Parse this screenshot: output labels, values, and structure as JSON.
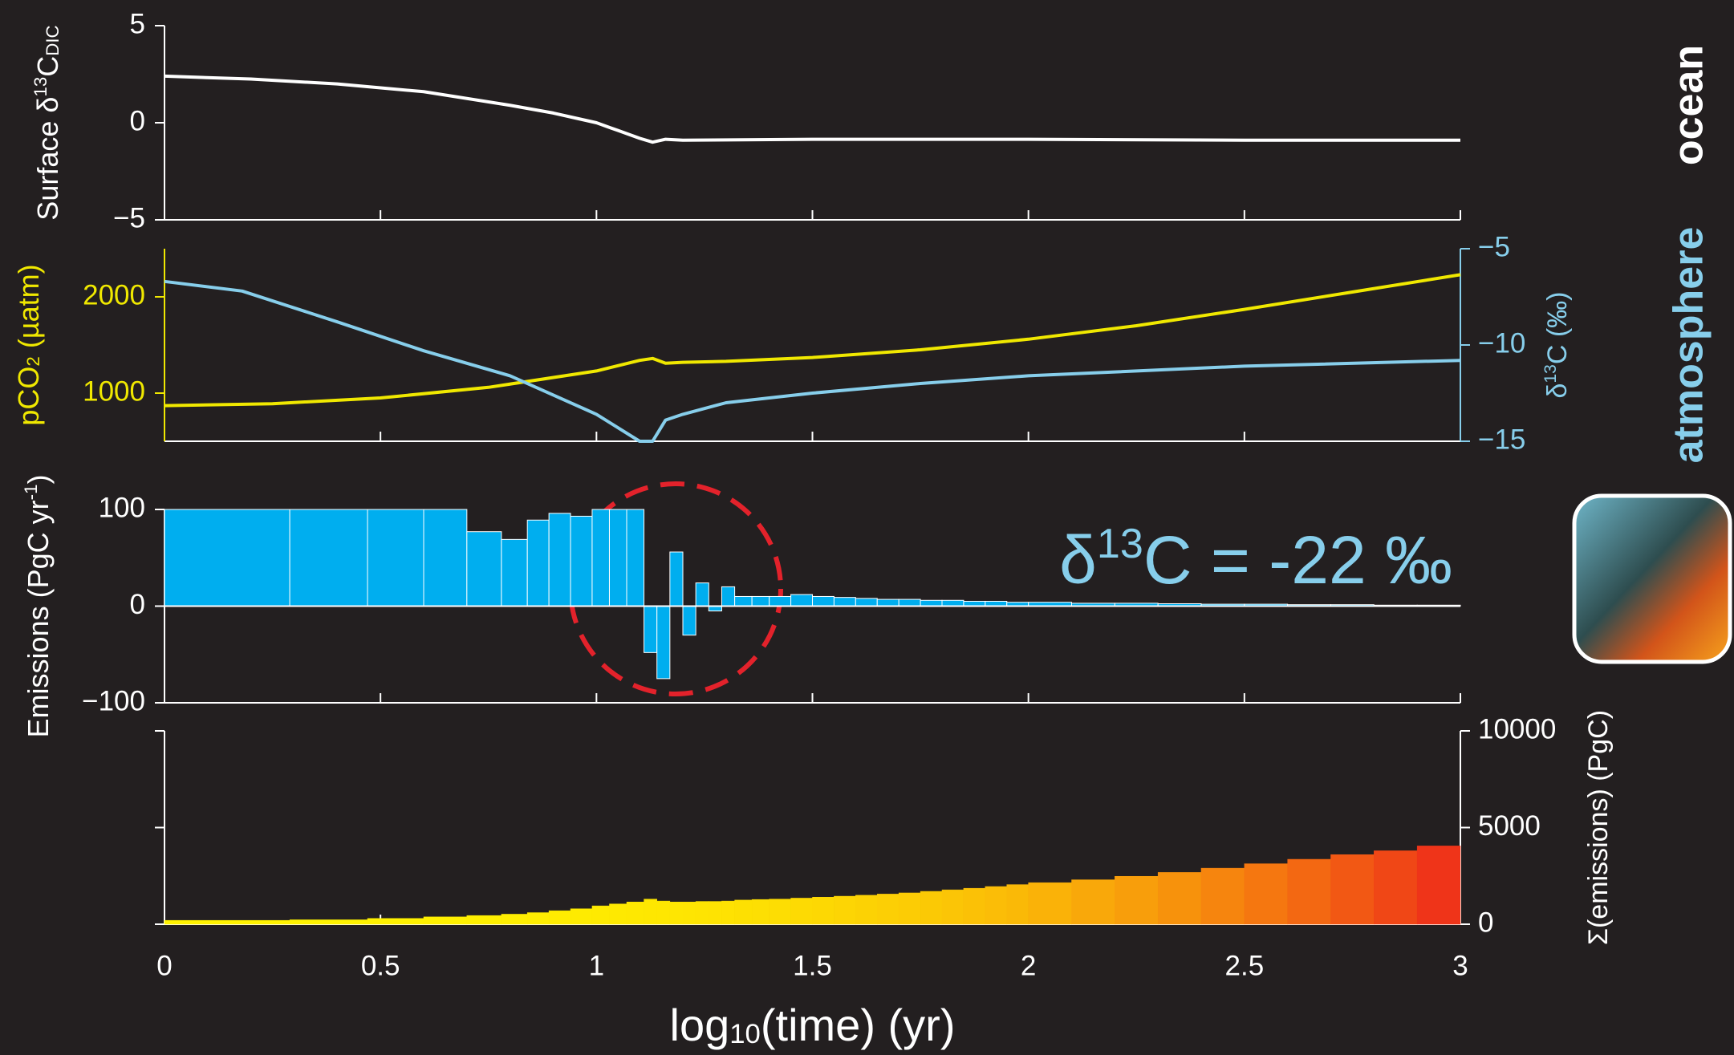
{
  "chart_data": [
    {
      "type": "line",
      "ylabel": [
        "Surface δ",
        "13",
        "C",
        "DIC"
      ],
      "side_label": "ocean",
      "color": "#ffffff",
      "xlim": [
        0,
        3
      ],
      "xticks": [
        0,
        0.5,
        1,
        1.5,
        2,
        2.5,
        3
      ],
      "ylim": [
        -5,
        5
      ],
      "yticks": [
        {
          "value": -5,
          "label": "−5"
        },
        0,
        5
      ],
      "x": [
        0,
        0.2,
        0.4,
        0.6,
        0.8,
        0.9,
        1.0,
        1.05,
        1.1,
        1.13,
        1.16,
        1.2,
        1.5,
        2.0,
        2.5,
        3.0
      ],
      "values": [
        2.4,
        2.25,
        2.0,
        1.6,
        0.9,
        0.5,
        0.0,
        -0.4,
        -0.8,
        -1.0,
        -0.85,
        -0.9,
        -0.85,
        -0.85,
        -0.9,
        -0.9
      ]
    },
    {
      "type": "line",
      "ylabel": [
        "pCO",
        "2",
        " (µatm)"
      ],
      "y2label": [
        "δ",
        "13",
        "C (‰)"
      ],
      "side_label": "atmosphere",
      "side_color": "#87ceeb",
      "xlim": [
        0,
        3
      ],
      "xticks": [
        0,
        0.5,
        1,
        1.5,
        2,
        2.5,
        3
      ],
      "ylim": [
        500,
        2500
      ],
      "yticks": [
        1000,
        2000
      ],
      "y2lim": [
        -15,
        -5
      ],
      "y2ticks": [
        {
          "value": -15,
          "label": "−15"
        },
        {
          "value": -10,
          "label": "−10"
        },
        {
          "value": -5,
          "label": "−5"
        }
      ],
      "series": [
        {
          "color": "#f0e800",
          "x": [
            0,
            0.25,
            0.5,
            0.75,
            1.0,
            1.1,
            1.13,
            1.16,
            1.2,
            1.3,
            1.5,
            1.75,
            2.0,
            2.25,
            2.5,
            2.75,
            3.0
          ],
          "values": [
            870,
            890,
            950,
            1060,
            1230,
            1340,
            1360,
            1310,
            1320,
            1330,
            1370,
            1450,
            1560,
            1700,
            1870,
            2050,
            2230
          ]
        },
        {
          "color": "#87ceeb",
          "axis": "y2",
          "x": [
            0,
            0.18,
            0.4,
            0.6,
            0.8,
            1.0,
            1.1,
            1.13,
            1.16,
            1.2,
            1.3,
            1.5,
            1.75,
            2.0,
            2.5,
            3.0
          ],
          "values": [
            -6.7,
            -7.2,
            -8.8,
            -10.3,
            -11.6,
            -13.6,
            -15,
            -15,
            -13.9,
            -13.6,
            -13.0,
            -12.5,
            -12.0,
            -11.6,
            -11.1,
            -10.8
          ]
        }
      ]
    },
    {
      "type": "histogram",
      "ylabel": [
        "Emissions (PgC yr",
        "-1",
        ")"
      ],
      "annotation": [
        "δ",
        "13",
        "C = -22 ‰"
      ],
      "color": "#00aeef",
      "xlim": [
        0,
        3
      ],
      "xticks": [
        0,
        0.5,
        1,
        1.5,
        2,
        2.5,
        3
      ],
      "ylim": [
        -100,
        100
      ],
      "yticks": [
        {
          "value": -100,
          "label": "−100"
        },
        0,
        100
      ],
      "bins": [
        0,
        0.29,
        0.47,
        0.6,
        0.7,
        0.78,
        0.84,
        0.89,
        0.94,
        0.99,
        1.03,
        1.07,
        1.11,
        1.14,
        1.17,
        1.2,
        1.23,
        1.26,
        1.29,
        1.32,
        1.36,
        1.4,
        1.45,
        1.5,
        1.55,
        1.6,
        1.65,
        1.7,
        1.75,
        1.8,
        1.85,
        1.9,
        1.95,
        2.0,
        2.1,
        2.2,
        2.3,
        2.4,
        2.5,
        2.6,
        2.7,
        2.8,
        2.9,
        3.0
      ],
      "values": [
        100,
        100,
        100,
        100,
        77,
        69,
        89,
        96,
        93,
        100,
        100,
        100,
        -48,
        -75,
        56,
        -30,
        24,
        -5,
        20,
        10,
        10,
        10,
        12,
        10,
        9,
        8,
        7,
        7,
        6,
        6,
        5,
        5,
        4,
        4,
        3,
        3,
        2.5,
        2,
        2,
        1.5,
        1.5,
        1,
        1
      ]
    },
    {
      "type": "histogram",
      "y2label": "Σ(emissions) (PgC)",
      "xlabel": [
        "log",
        "10",
        "(time) (yr)"
      ],
      "colormap": [
        "#fff200",
        "#ee2a1a"
      ],
      "xlim": [
        0,
        3
      ],
      "xticks": [
        0,
        0.5,
        1,
        1.5,
        2,
        2.5,
        3
      ],
      "y2lim": [
        0,
        10000
      ],
      "y2ticks": [
        0,
        5000,
        10000
      ],
      "bins": [
        0,
        0.29,
        0.47,
        0.6,
        0.7,
        0.78,
        0.84,
        0.89,
        0.94,
        0.99,
        1.03,
        1.07,
        1.11,
        1.14,
        1.17,
        1.2,
        1.23,
        1.26,
        1.29,
        1.32,
        1.36,
        1.4,
        1.45,
        1.5,
        1.55,
        1.6,
        1.65,
        1.7,
        1.75,
        1.8,
        1.85,
        1.9,
        1.95,
        2.0,
        2.1,
        2.2,
        2.3,
        2.4,
        2.5,
        2.6,
        2.7,
        2.8,
        2.9,
        3.0
      ],
      "values": [
        200,
        230,
        300,
        380,
        450,
        520,
        600,
        700,
        800,
        950,
        1050,
        1150,
        1300,
        1200,
        1150,
        1150,
        1180,
        1180,
        1200,
        1250,
        1280,
        1300,
        1350,
        1400,
        1450,
        1500,
        1560,
        1620,
        1700,
        1780,
        1860,
        1950,
        2050,
        2150,
        2300,
        2480,
        2680,
        2900,
        3130,
        3360,
        3600,
        3800,
        4050
      ]
    }
  ]
}
